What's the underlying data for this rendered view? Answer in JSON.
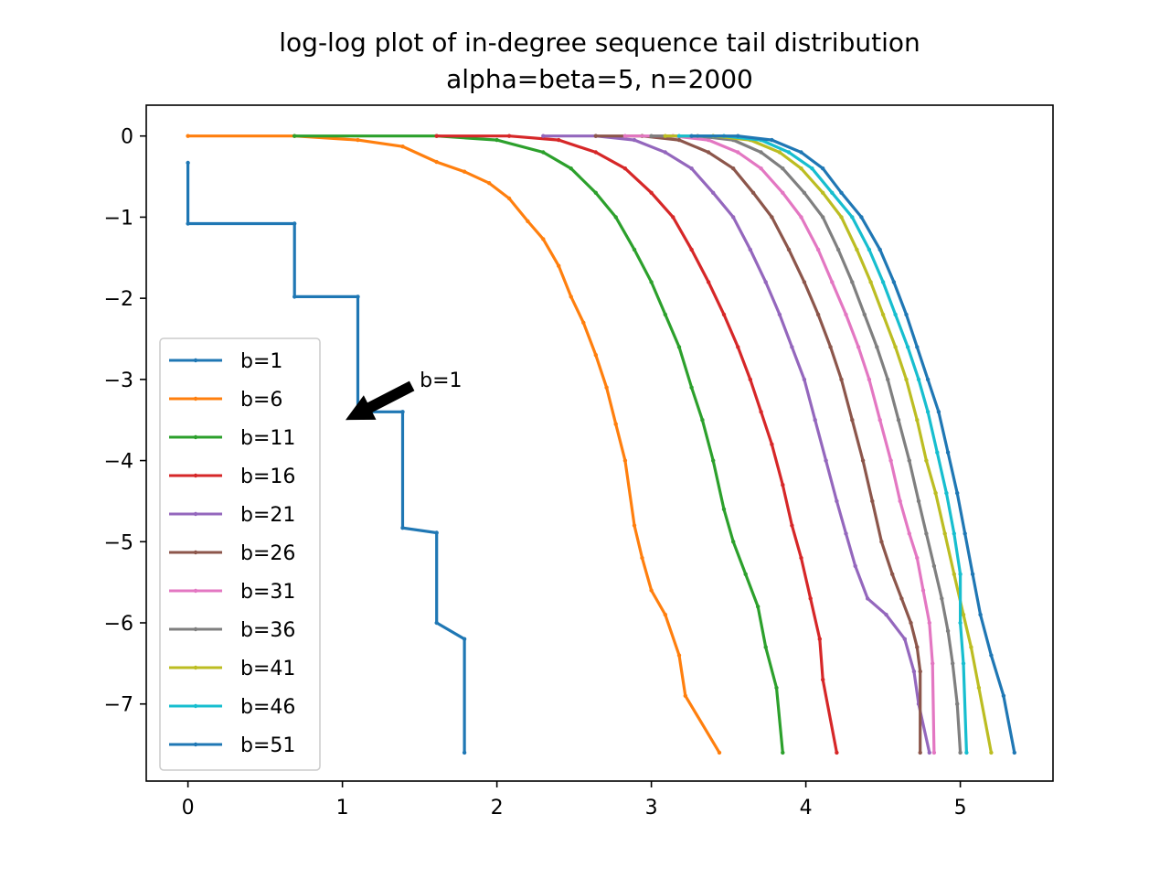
{
  "chart_data": {
    "type": "line",
    "title_line1": "log-log plot of in-degree sequence tail distribution",
    "title_line2": "alpha=beta=5, n=2000",
    "xlabel": "",
    "ylabel": "",
    "xlim": [
      -0.27,
      5.6
    ],
    "ylim": [
      -7.95,
      0.38
    ],
    "x_ticks": [
      0,
      1,
      2,
      3,
      4,
      5
    ],
    "y_ticks": [
      0,
      -1,
      -2,
      -3,
      -4,
      -5,
      -6,
      -7
    ],
    "x_tick_labels": [
      "0",
      "1",
      "2",
      "3",
      "4",
      "5"
    ],
    "y_tick_labels": [
      "0",
      "−1",
      "−2",
      "−3",
      "−4",
      "−5",
      "−6",
      "−7"
    ],
    "grid": false,
    "legend_placement": "lower-left",
    "annotation": {
      "text": "b=1",
      "text_xy": [
        1.5,
        -3.0
      ],
      "arrow_tip_xy": [
        1.02,
        -3.5
      ]
    },
    "series": [
      {
        "name": "b=1",
        "color": "#1f77b4",
        "points": [
          [
            0,
            -0.33
          ],
          [
            0,
            -1.08
          ],
          [
            0.69,
            -1.08
          ],
          [
            0.69,
            -1.98
          ],
          [
            1.1,
            -1.98
          ],
          [
            1.1,
            -3.4
          ],
          [
            1.39,
            -3.4
          ],
          [
            1.39,
            -4.83
          ],
          [
            1.61,
            -4.89
          ],
          [
            1.61,
            -6.0
          ],
          [
            1.79,
            -6.2
          ],
          [
            1.79,
            -7.6
          ]
        ]
      },
      {
        "name": "b=6",
        "color": "#ff7f0e",
        "points": [
          [
            0,
            0
          ],
          [
            0.69,
            0
          ],
          [
            1.1,
            -0.05
          ],
          [
            1.39,
            -0.13
          ],
          [
            1.61,
            -0.32
          ],
          [
            1.79,
            -0.44
          ],
          [
            1.95,
            -0.58
          ],
          [
            2.08,
            -0.77
          ],
          [
            2.2,
            -1.05
          ],
          [
            2.3,
            -1.27
          ],
          [
            2.4,
            -1.6
          ],
          [
            2.48,
            -1.98
          ],
          [
            2.56,
            -2.3
          ],
          [
            2.64,
            -2.7
          ],
          [
            2.71,
            -3.1
          ],
          [
            2.77,
            -3.55
          ],
          [
            2.83,
            -4.0
          ],
          [
            2.89,
            -4.8
          ],
          [
            2.94,
            -5.2
          ],
          [
            3.0,
            -5.6
          ],
          [
            3.09,
            -5.9
          ],
          [
            3.18,
            -6.4
          ],
          [
            3.22,
            -6.9
          ],
          [
            3.44,
            -7.6
          ]
        ]
      },
      {
        "name": "b=11",
        "color": "#2ca02c",
        "points": [
          [
            0.69,
            0
          ],
          [
            1.61,
            0
          ],
          [
            2.0,
            -0.05
          ],
          [
            2.3,
            -0.2
          ],
          [
            2.48,
            -0.4
          ],
          [
            2.64,
            -0.7
          ],
          [
            2.77,
            -1.0
          ],
          [
            2.89,
            -1.4
          ],
          [
            3.0,
            -1.8
          ],
          [
            3.09,
            -2.2
          ],
          [
            3.18,
            -2.6
          ],
          [
            3.26,
            -3.1
          ],
          [
            3.33,
            -3.5
          ],
          [
            3.4,
            -4.0
          ],
          [
            3.47,
            -4.6
          ],
          [
            3.53,
            -5.0
          ],
          [
            3.61,
            -5.4
          ],
          [
            3.69,
            -5.8
          ],
          [
            3.74,
            -6.3
          ],
          [
            3.81,
            -6.8
          ],
          [
            3.85,
            -7.6
          ]
        ]
      },
      {
        "name": "b=16",
        "color": "#d62728",
        "points": [
          [
            1.61,
            0
          ],
          [
            2.08,
            0
          ],
          [
            2.4,
            -0.05
          ],
          [
            2.64,
            -0.2
          ],
          [
            2.83,
            -0.4
          ],
          [
            3.0,
            -0.7
          ],
          [
            3.14,
            -1.0
          ],
          [
            3.26,
            -1.4
          ],
          [
            3.37,
            -1.8
          ],
          [
            3.47,
            -2.2
          ],
          [
            3.56,
            -2.6
          ],
          [
            3.64,
            -3.0
          ],
          [
            3.71,
            -3.4
          ],
          [
            3.78,
            -3.8
          ],
          [
            3.85,
            -4.3
          ],
          [
            3.91,
            -4.8
          ],
          [
            3.97,
            -5.2
          ],
          [
            4.03,
            -5.7
          ],
          [
            4.09,
            -6.2
          ],
          [
            4.11,
            -6.7
          ],
          [
            4.2,
            -7.6
          ]
        ]
      },
      {
        "name": "b=21",
        "color": "#9467bd",
        "points": [
          [
            2.3,
            0
          ],
          [
            2.64,
            0
          ],
          [
            2.89,
            -0.05
          ],
          [
            3.09,
            -0.2
          ],
          [
            3.26,
            -0.4
          ],
          [
            3.4,
            -0.7
          ],
          [
            3.53,
            -1.0
          ],
          [
            3.64,
            -1.4
          ],
          [
            3.74,
            -1.8
          ],
          [
            3.83,
            -2.2
          ],
          [
            3.91,
            -2.6
          ],
          [
            3.99,
            -3.0
          ],
          [
            4.06,
            -3.5
          ],
          [
            4.13,
            -4.0
          ],
          [
            4.2,
            -4.5
          ],
          [
            4.26,
            -4.9
          ],
          [
            4.32,
            -5.3
          ],
          [
            4.4,
            -5.7
          ],
          [
            4.52,
            -5.9
          ],
          [
            4.64,
            -6.2
          ],
          [
            4.7,
            -6.6
          ],
          [
            4.73,
            -7.0
          ],
          [
            4.8,
            -7.6
          ]
        ]
      },
      {
        "name": "b=26",
        "color": "#8c564b",
        "points": [
          [
            2.64,
            0
          ],
          [
            2.94,
            0
          ],
          [
            3.18,
            -0.05
          ],
          [
            3.37,
            -0.2
          ],
          [
            3.53,
            -0.4
          ],
          [
            3.66,
            -0.7
          ],
          [
            3.78,
            -1.0
          ],
          [
            3.89,
            -1.4
          ],
          [
            3.99,
            -1.8
          ],
          [
            4.08,
            -2.2
          ],
          [
            4.16,
            -2.6
          ],
          [
            4.23,
            -3.0
          ],
          [
            4.3,
            -3.5
          ],
          [
            4.37,
            -4.0
          ],
          [
            4.43,
            -4.5
          ],
          [
            4.49,
            -5.0
          ],
          [
            4.56,
            -5.4
          ],
          [
            4.62,
            -5.7
          ],
          [
            4.68,
            -6.0
          ],
          [
            4.72,
            -6.3
          ],
          [
            4.74,
            -6.6
          ],
          [
            4.74,
            -7.6
          ]
        ]
      },
      {
        "name": "b=31",
        "color": "#e377c2",
        "points": [
          [
            2.83,
            0
          ],
          [
            3.14,
            0
          ],
          [
            3.37,
            -0.05
          ],
          [
            3.56,
            -0.2
          ],
          [
            3.71,
            -0.4
          ],
          [
            3.85,
            -0.7
          ],
          [
            3.97,
            -1.0
          ],
          [
            4.08,
            -1.4
          ],
          [
            4.17,
            -1.8
          ],
          [
            4.26,
            -2.2
          ],
          [
            4.34,
            -2.6
          ],
          [
            4.41,
            -3.0
          ],
          [
            4.48,
            -3.5
          ],
          [
            4.55,
            -4.0
          ],
          [
            4.61,
            -4.5
          ],
          [
            4.67,
            -4.9
          ],
          [
            4.72,
            -5.2
          ],
          [
            4.76,
            -5.6
          ],
          [
            4.8,
            -6.0
          ],
          [
            4.82,
            -6.5
          ],
          [
            4.83,
            -7.6
          ]
        ]
      },
      {
        "name": "b=36",
        "color": "#7f7f7f",
        "points": [
          [
            3.0,
            0
          ],
          [
            3.3,
            0
          ],
          [
            3.53,
            -0.05
          ],
          [
            3.71,
            -0.2
          ],
          [
            3.85,
            -0.4
          ],
          [
            3.99,
            -0.7
          ],
          [
            4.11,
            -1.0
          ],
          [
            4.21,
            -1.4
          ],
          [
            4.3,
            -1.8
          ],
          [
            4.38,
            -2.2
          ],
          [
            4.46,
            -2.6
          ],
          [
            4.53,
            -3.0
          ],
          [
            4.6,
            -3.5
          ],
          [
            4.67,
            -4.0
          ],
          [
            4.73,
            -4.5
          ],
          [
            4.78,
            -4.9
          ],
          [
            4.83,
            -5.3
          ],
          [
            4.88,
            -5.7
          ],
          [
            4.92,
            -6.1
          ],
          [
            4.95,
            -6.5
          ],
          [
            4.98,
            -7.0
          ],
          [
            5.0,
            -7.6
          ]
        ]
      },
      {
        "name": "b=41",
        "color": "#bcbd22",
        "points": [
          [
            3.09,
            0
          ],
          [
            3.4,
            0
          ],
          [
            3.64,
            -0.05
          ],
          [
            3.83,
            -0.2
          ],
          [
            3.97,
            -0.4
          ],
          [
            4.11,
            -0.7
          ],
          [
            4.23,
            -1.0
          ],
          [
            4.33,
            -1.4
          ],
          [
            4.42,
            -1.8
          ],
          [
            4.5,
            -2.2
          ],
          [
            4.58,
            -2.6
          ],
          [
            4.65,
            -3.0
          ],
          [
            4.72,
            -3.5
          ],
          [
            4.78,
            -4.0
          ],
          [
            4.84,
            -4.4
          ],
          [
            4.9,
            -4.9
          ],
          [
            4.96,
            -5.4
          ],
          [
            5.02,
            -5.9
          ],
          [
            5.07,
            -6.3
          ],
          [
            5.12,
            -6.8
          ],
          [
            5.2,
            -7.6
          ]
        ]
      },
      {
        "name": "b=46",
        "color": "#17becf",
        "points": [
          [
            3.18,
            0
          ],
          [
            3.47,
            0
          ],
          [
            3.71,
            -0.05
          ],
          [
            3.89,
            -0.2
          ],
          [
            4.04,
            -0.4
          ],
          [
            4.17,
            -0.7
          ],
          [
            4.3,
            -1.0
          ],
          [
            4.41,
            -1.4
          ],
          [
            4.5,
            -1.8
          ],
          [
            4.58,
            -2.2
          ],
          [
            4.66,
            -2.6
          ],
          [
            4.73,
            -3.0
          ],
          [
            4.79,
            -3.4
          ],
          [
            4.85,
            -3.9
          ],
          [
            4.91,
            -4.4
          ],
          [
            4.96,
            -4.9
          ],
          [
            5.0,
            -5.4
          ],
          [
            5.0,
            -6.0
          ],
          [
            5.02,
            -6.5
          ],
          [
            5.04,
            -7.6
          ]
        ]
      },
      {
        "name": "b=51",
        "color": "#1f77b4",
        "points": [
          [
            3.26,
            0
          ],
          [
            3.56,
            0
          ],
          [
            3.78,
            -0.05
          ],
          [
            3.97,
            -0.2
          ],
          [
            4.11,
            -0.4
          ],
          [
            4.23,
            -0.7
          ],
          [
            4.36,
            -1.0
          ],
          [
            4.48,
            -1.4
          ],
          [
            4.57,
            -1.8
          ],
          [
            4.65,
            -2.2
          ],
          [
            4.72,
            -2.6
          ],
          [
            4.79,
            -3.0
          ],
          [
            4.86,
            -3.4
          ],
          [
            4.92,
            -3.9
          ],
          [
            4.98,
            -4.4
          ],
          [
            5.03,
            -4.9
          ],
          [
            5.08,
            -5.4
          ],
          [
            5.13,
            -5.9
          ],
          [
            5.2,
            -6.4
          ],
          [
            5.28,
            -6.9
          ],
          [
            5.35,
            -7.6
          ]
        ]
      }
    ]
  }
}
